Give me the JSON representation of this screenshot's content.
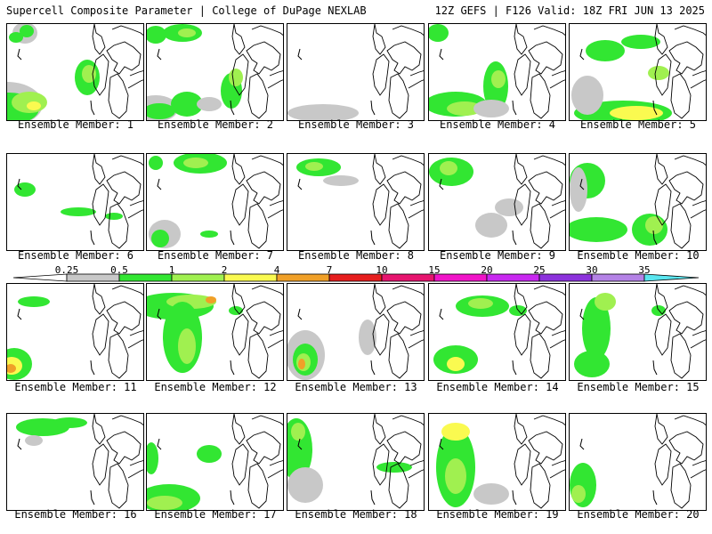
{
  "header": {
    "title": "Supercell Composite Parameter | College of DuPage NEXLAB",
    "run_info": "12Z GEFS | F126 Valid: 18Z FRI JUN 13 2025"
  },
  "legend": {
    "ticks": [
      "0.25",
      "0.5",
      "1",
      "2",
      "4",
      "7",
      "10",
      "15",
      "20",
      "25",
      "30",
      "35"
    ],
    "colors": [
      "#c8c8c8",
      "#32e632",
      "#a0f050",
      "#fafa50",
      "#f0a028",
      "#e61e1e",
      "#e6146e",
      "#f014c8",
      "#c828f0",
      "#8c32dc",
      "#b482e6",
      "#5ae6f0"
    ]
  },
  "members": [
    {
      "label": "Ensemble Member: 1"
    },
    {
      "label": "Ensemble Member: 2"
    },
    {
      "label": "Ensemble Member: 3"
    },
    {
      "label": "Ensemble Member: 4"
    },
    {
      "label": "Ensemble Member: 5"
    },
    {
      "label": "Ensemble Member: 6"
    },
    {
      "label": "Ensemble Member: 7"
    },
    {
      "label": "Ensemble Member: 8"
    },
    {
      "label": "Ensemble Member: 9"
    },
    {
      "label": "Ensemble Member: 10"
    },
    {
      "label": "Ensemble Member: 11"
    },
    {
      "label": "Ensemble Member: 12"
    },
    {
      "label": "Ensemble Member: 13"
    },
    {
      "label": "Ensemble Member: 14"
    },
    {
      "label": "Ensemble Member: 15"
    },
    {
      "label": "Ensemble Member: 16"
    },
    {
      "label": "Ensemble Member: 17"
    },
    {
      "label": "Ensemble Member: 18"
    },
    {
      "label": "Ensemble Member: 19"
    },
    {
      "label": "Ensemble Member: 20"
    }
  ]
}
